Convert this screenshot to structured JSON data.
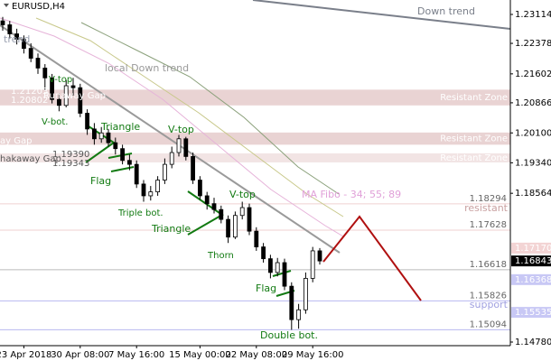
{
  "chart_data": {
    "type": "candlestick",
    "title": "EURUSD,H4",
    "categories": [
      null,
      null,
      null,
      "23 Apr 2018",
      null,
      null,
      null,
      null,
      null,
      null,
      null,
      "30 Apr 08:00",
      null,
      null,
      null,
      null,
      null,
      null,
      null,
      "7 May 16:00",
      null,
      null,
      null,
      null,
      null,
      null,
      null,
      null,
      "15 May 00:00",
      null,
      null,
      null,
      null,
      null,
      null,
      null,
      "22 May 08:00",
      null,
      null,
      null,
      null,
      null,
      null,
      null,
      "29 May 16:00",
      null
    ],
    "open": [
      1.2295,
      1.2285,
      1.2262,
      1.2248,
      1.2225,
      1.22,
      1.2175,
      1.215,
      1.2095,
      1.208,
      1.213,
      1.2125,
      1.206,
      1.202,
      1.1995,
      1.201,
      1.1985,
      1.197,
      1.194,
      1.193,
      1.188,
      1.185,
      1.186,
      1.189,
      1.193,
      1.196,
      1.1995,
      1.195,
      1.189,
      1.185,
      1.183,
      1.1815,
      1.179,
      1.1745,
      1.18,
      1.182,
      1.176,
      1.172,
      1.169,
      1.1655,
      1.168,
      1.162,
      1.1535,
      1.156,
      1.164,
      1.171
    ],
    "high": [
      1.2305,
      1.2295,
      1.2275,
      1.2258,
      1.2238,
      1.2212,
      1.2185,
      1.216,
      1.211,
      1.2145,
      1.215,
      1.2135,
      1.207,
      1.2035,
      1.2025,
      1.202,
      1.1998,
      1.198,
      1.1955,
      1.194,
      1.189,
      1.1875,
      1.19,
      1.1945,
      1.1975,
      1.2005,
      1.2,
      1.196,
      1.19,
      1.186,
      1.1845,
      1.1825,
      1.18,
      1.181,
      1.1835,
      1.183,
      1.177,
      1.173,
      1.17,
      1.1692,
      1.169,
      1.163,
      1.1575,
      1.1655,
      1.172,
      1.1717
    ],
    "low": [
      1.227,
      1.225,
      1.2235,
      1.2212,
      1.219,
      1.216,
      1.212,
      1.2085,
      1.2065,
      1.2075,
      1.2105,
      1.205,
      1.2005,
      1.198,
      1.1985,
      1.1975,
      1.1955,
      1.193,
      1.1915,
      1.187,
      1.1835,
      1.1838,
      1.185,
      1.188,
      1.192,
      1.195,
      1.194,
      1.188,
      1.184,
      1.1815,
      1.1805,
      1.178,
      1.173,
      1.174,
      1.179,
      1.175,
      1.171,
      1.168,
      1.164,
      1.1645,
      1.161,
      1.1509,
      1.1512,
      1.155,
      1.163,
      1.1675
    ],
    "close": [
      1.2285,
      1.2262,
      1.2248,
      1.2225,
      1.22,
      1.2175,
      1.215,
      1.2095,
      1.208,
      1.213,
      1.2125,
      1.206,
      1.202,
      1.1995,
      1.201,
      1.1985,
      1.197,
      1.194,
      1.193,
      1.188,
      1.185,
      1.186,
      1.189,
      1.193,
      1.196,
      1.1995,
      1.195,
      1.189,
      1.185,
      1.183,
      1.1815,
      1.179,
      1.1745,
      1.18,
      1.182,
      1.176,
      1.172,
      1.169,
      1.1655,
      1.168,
      1.162,
      1.1535,
      1.156,
      1.164,
      1.171,
      1.16843
    ],
    "ylim": [
      1.14688,
      1.23481
    ],
    "yticks": [
      1.23114,
      1.22378,
      1.21602,
      1.20866,
      {
        "value": 1.201,
        "label": "1.20100"
      },
      {
        "value": 1.1934,
        "label": "1.19340"
      },
      1.18564,
      {
        "value": 1.1478,
        "label": "1.14780"
      }
    ],
    "levels": [
      {
        "value": 1.18294,
        "color": "#efd0d0"
      },
      {
        "value": 1.17628,
        "color": "#efd0d0"
      },
      {
        "value": 1.16618,
        "color": "#bbbbbb"
      },
      {
        "value": 1.15826,
        "color": "#b8b8f0"
      },
      {
        "value": 1.15094,
        "color": "#b8b8f0"
      }
    ],
    "axis_boxes": [
      {
        "value": 1.1717,
        "label": "1.17170",
        "color": "#f3d4d4",
        "text_color": "#ffffff"
      },
      {
        "value": 1.16843,
        "label": "1.16843",
        "color": "#000000",
        "text_color": "#ffffff"
      },
      {
        "value": 1.16368,
        "label": "1.16368",
        "color": "#c8c8f5",
        "text_color": "#ffffff"
      },
      {
        "value": 1.15535,
        "label": "1.15535",
        "color": "#c8c8f5",
        "text_color": "#ffffff"
      }
    ],
    "zones": [
      {
        "top": 1.212,
        "bottom": 1.208,
        "color": "#e9d3d3",
        "name": "Resistant Zone"
      },
      {
        "top": 1.2011,
        "bottom": 1.198,
        "color": "#e9d3d3",
        "name": "Resistant Zone"
      },
      {
        "top": 1.1958,
        "bottom": 1.1935,
        "color": "#f2e4e4",
        "name": "Resistant Zone"
      }
    ],
    "annotations": [
      "Down trend",
      "trend",
      "local Down trend",
      "V-top",
      "V-bot.",
      "Triangle",
      "Flag",
      "Triple bot.",
      "V-top",
      "Triangle",
      "V-top",
      "Thorn",
      "Flag",
      "Double bot.",
      "MA Fibo - 34; 55; 89",
      "resistant",
      "support",
      "Runaway Gap",
      "ay Gap",
      "hakaway Gap",
      "1.21203",
      "1.20802",
      "1.19390",
      "1.19343"
    ]
  }
}
